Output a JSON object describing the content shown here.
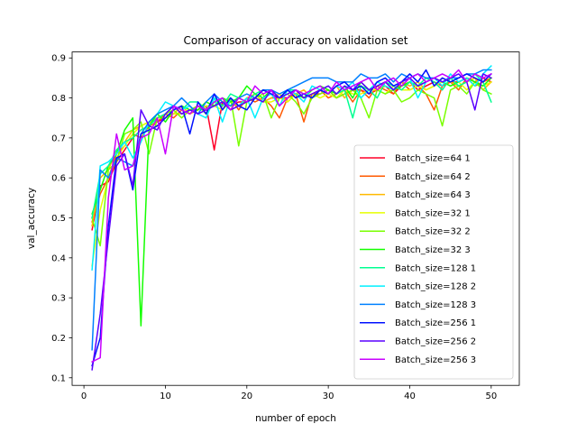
{
  "chart_data": {
    "type": "line",
    "title": "Comparison of accuracy on validation set",
    "xlabel": "number of epoch",
    "ylabel": "val_accuracy",
    "xlim": [
      -1.45,
      53.45
    ],
    "ylim": [
      0.081,
      0.915
    ],
    "xticks": [
      0,
      10,
      20,
      30,
      40,
      50
    ],
    "yticks": [
      0.1,
      0.2,
      0.3,
      0.4,
      0.5,
      0.6,
      0.7,
      0.8,
      0.9
    ],
    "grid": false,
    "legend_position": "lower-right",
    "x": [
      1,
      2,
      3,
      4,
      5,
      6,
      7,
      8,
      9,
      10,
      11,
      12,
      13,
      14,
      15,
      16,
      17,
      18,
      19,
      20,
      21,
      22,
      23,
      24,
      25,
      26,
      27,
      28,
      29,
      30,
      31,
      32,
      33,
      34,
      35,
      36,
      37,
      38,
      39,
      40,
      41,
      42,
      43,
      44,
      45,
      46,
      47,
      48,
      49,
      50
    ],
    "series": [
      {
        "name": "Batch_size=64 1",
        "color": "#ff0028",
        "values": [
          0.47,
          0.58,
          0.59,
          0.64,
          0.67,
          0.7,
          0.72,
          0.73,
          0.74,
          0.75,
          0.76,
          0.76,
          0.77,
          0.77,
          0.78,
          0.67,
          0.79,
          0.78,
          0.79,
          0.79,
          0.8,
          0.79,
          0.8,
          0.8,
          0.8,
          0.81,
          0.8,
          0.81,
          0.81,
          0.82,
          0.8,
          0.81,
          0.82,
          0.82,
          0.81,
          0.82,
          0.83,
          0.81,
          0.83,
          0.84,
          0.82,
          0.83,
          0.84,
          0.83,
          0.84,
          0.84,
          0.85,
          0.84,
          0.85,
          0.84
        ]
      },
      {
        "name": "Batch_size=64 2",
        "color": "#ff5a00",
        "values": [
          0.49,
          0.56,
          0.6,
          0.66,
          0.68,
          0.71,
          0.7,
          0.73,
          0.74,
          0.76,
          0.75,
          0.77,
          0.76,
          0.78,
          0.77,
          0.79,
          0.78,
          0.8,
          0.77,
          0.8,
          0.79,
          0.8,
          0.78,
          0.75,
          0.8,
          0.81,
          0.74,
          0.81,
          0.82,
          0.8,
          0.81,
          0.82,
          0.79,
          0.82,
          0.8,
          0.83,
          0.82,
          0.81,
          0.84,
          0.82,
          0.83,
          0.81,
          0.77,
          0.83,
          0.84,
          0.82,
          0.85,
          0.83,
          0.84,
          0.85
        ]
      },
      {
        "name": "Batch_size=64 3",
        "color": "#ffba00",
        "values": [
          0.48,
          0.6,
          0.62,
          0.67,
          0.69,
          0.72,
          0.73,
          0.74,
          0.73,
          0.75,
          0.76,
          0.78,
          0.76,
          0.77,
          0.79,
          0.78,
          0.79,
          0.8,
          0.78,
          0.8,
          0.81,
          0.79,
          0.8,
          0.81,
          0.79,
          0.81,
          0.82,
          0.8,
          0.82,
          0.81,
          0.83,
          0.8,
          0.82,
          0.83,
          0.82,
          0.82,
          0.83,
          0.82,
          0.84,
          0.83,
          0.84,
          0.82,
          0.83,
          0.85,
          0.84,
          0.83,
          0.84,
          0.85,
          0.82,
          0.84
        ]
      },
      {
        "name": "Batch_size=32 1",
        "color": "#e6ff00",
        "values": [
          0.38,
          0.52,
          0.6,
          0.65,
          0.68,
          0.71,
          0.73,
          0.74,
          0.75,
          0.75,
          0.76,
          0.76,
          0.77,
          0.77,
          0.78,
          0.78,
          0.77,
          0.79,
          0.78,
          0.79,
          0.8,
          0.79,
          0.79,
          0.8,
          0.79,
          0.81,
          0.8,
          0.81,
          0.8,
          0.81,
          0.8,
          0.82,
          0.81,
          0.81,
          0.82,
          0.82,
          0.81,
          0.83,
          0.82,
          0.82,
          0.83,
          0.82,
          0.83,
          0.84,
          0.83,
          0.84,
          0.82,
          0.84,
          0.83,
          0.84
        ]
      },
      {
        "name": "Batch_size=32 2",
        "color": "#7aff00",
        "values": [
          0.5,
          0.43,
          0.62,
          0.64,
          0.71,
          0.72,
          0.74,
          0.66,
          0.75,
          0.76,
          0.77,
          0.75,
          0.77,
          0.78,
          0.76,
          0.79,
          0.78,
          0.8,
          0.68,
          0.79,
          0.8,
          0.81,
          0.75,
          0.8,
          0.81,
          0.79,
          0.76,
          0.8,
          0.81,
          0.82,
          0.8,
          0.81,
          0.82,
          0.8,
          0.75,
          0.82,
          0.81,
          0.82,
          0.79,
          0.8,
          0.82,
          0.81,
          0.8,
          0.73,
          0.82,
          0.83,
          0.81,
          0.84,
          0.82,
          0.81
        ]
      },
      {
        "name": "Batch_size=32 3",
        "color": "#14ff00",
        "values": [
          0.51,
          0.57,
          0.63,
          0.66,
          0.72,
          0.75,
          0.23,
          0.73,
          0.76,
          0.74,
          0.77,
          0.78,
          0.77,
          0.77,
          0.79,
          0.78,
          0.8,
          0.79,
          0.8,
          0.83,
          0.81,
          0.8,
          0.82,
          0.8,
          0.82,
          0.81,
          0.8,
          0.82,
          0.83,
          0.82,
          0.81,
          0.83,
          0.8,
          0.84,
          0.82,
          0.83,
          0.84,
          0.82,
          0.83,
          0.84,
          0.83,
          0.84,
          0.85,
          0.84,
          0.83,
          0.84,
          0.85,
          0.84,
          0.83,
          0.85
        ]
      },
      {
        "name": "Batch_size=128 1",
        "color": "#00ff91",
        "values": [
          0.5,
          0.61,
          0.63,
          0.67,
          0.69,
          0.7,
          0.72,
          0.73,
          0.75,
          0.76,
          0.78,
          0.77,
          0.79,
          0.79,
          0.77,
          0.8,
          0.78,
          0.81,
          0.8,
          0.79,
          0.81,
          0.82,
          0.81,
          0.8,
          0.82,
          0.82,
          0.81,
          0.8,
          0.82,
          0.83,
          0.81,
          0.82,
          0.75,
          0.83,
          0.82,
          0.8,
          0.84,
          0.83,
          0.82,
          0.84,
          0.83,
          0.85,
          0.84,
          0.82,
          0.85,
          0.83,
          0.84,
          0.86,
          0.84,
          0.79
        ]
      },
      {
        "name": "Batch_size=128 2",
        "color": "#00f0ff",
        "values": [
          0.37,
          0.63,
          0.64,
          0.66,
          0.69,
          0.65,
          0.69,
          0.74,
          0.76,
          0.79,
          0.78,
          0.77,
          0.78,
          0.76,
          0.75,
          0.8,
          0.74,
          0.8,
          0.78,
          0.8,
          0.75,
          0.8,
          0.81,
          0.78,
          0.82,
          0.81,
          0.79,
          0.83,
          0.82,
          0.81,
          0.83,
          0.82,
          0.84,
          0.8,
          0.82,
          0.84,
          0.83,
          0.82,
          0.84,
          0.85,
          0.8,
          0.84,
          0.85,
          0.83,
          0.86,
          0.84,
          0.85,
          0.83,
          0.86,
          0.88
        ]
      },
      {
        "name": "Batch_size=128 3",
        "color": "#0080ff",
        "values": [
          0.17,
          0.62,
          0.6,
          0.65,
          0.64,
          0.63,
          0.71,
          0.74,
          0.76,
          0.77,
          0.78,
          0.8,
          0.78,
          0.76,
          0.79,
          0.81,
          0.79,
          0.78,
          0.8,
          0.81,
          0.8,
          0.82,
          0.82,
          0.81,
          0.82,
          0.83,
          0.84,
          0.85,
          0.85,
          0.85,
          0.84,
          0.84,
          0.84,
          0.86,
          0.85,
          0.85,
          0.86,
          0.84,
          0.86,
          0.85,
          0.86,
          0.85,
          0.85,
          0.84,
          0.85,
          0.85,
          0.86,
          0.86,
          0.87,
          0.87
        ]
      },
      {
        "name": "Batch_size=256 1",
        "color": "#0010ff",
        "values": [
          0.13,
          0.2,
          0.48,
          0.65,
          0.66,
          0.57,
          0.71,
          0.72,
          0.73,
          0.75,
          0.77,
          0.78,
          0.71,
          0.79,
          0.76,
          0.81,
          0.77,
          0.8,
          0.78,
          0.77,
          0.8,
          0.82,
          0.81,
          0.8,
          0.82,
          0.8,
          0.81,
          0.8,
          0.82,
          0.81,
          0.83,
          0.84,
          0.82,
          0.83,
          0.81,
          0.84,
          0.85,
          0.83,
          0.84,
          0.86,
          0.84,
          0.87,
          0.83,
          0.85,
          0.84,
          0.85,
          0.86,
          0.85,
          0.84,
          0.86
        ]
      },
      {
        "name": "Batch_size=256 2",
        "color": "#5a00ff",
        "values": [
          0.12,
          0.26,
          0.45,
          0.63,
          0.66,
          0.58,
          0.77,
          0.73,
          0.72,
          0.76,
          0.78,
          0.76,
          0.77,
          0.76,
          0.77,
          0.78,
          0.79,
          0.77,
          0.78,
          0.79,
          0.8,
          0.79,
          0.82,
          0.8,
          0.81,
          0.82,
          0.8,
          0.81,
          0.82,
          0.83,
          0.81,
          0.83,
          0.82,
          0.84,
          0.82,
          0.83,
          0.84,
          0.82,
          0.84,
          0.85,
          0.83,
          0.84,
          0.85,
          0.84,
          0.85,
          0.86,
          0.84,
          0.77,
          0.86,
          0.85
        ]
      },
      {
        "name": "Batch_size=256 3",
        "color": "#c800ff",
        "values": [
          0.14,
          0.15,
          0.55,
          0.71,
          0.62,
          0.63,
          0.7,
          0.71,
          0.75,
          0.66,
          0.78,
          0.77,
          0.76,
          0.78,
          0.77,
          0.79,
          0.8,
          0.77,
          0.8,
          0.79,
          0.83,
          0.81,
          0.82,
          0.78,
          0.8,
          0.82,
          0.81,
          0.82,
          0.83,
          0.81,
          0.84,
          0.82,
          0.83,
          0.84,
          0.85,
          0.82,
          0.84,
          0.85,
          0.83,
          0.85,
          0.86,
          0.84,
          0.85,
          0.86,
          0.85,
          0.87,
          0.84,
          0.86,
          0.85,
          0.86
        ]
      }
    ]
  }
}
